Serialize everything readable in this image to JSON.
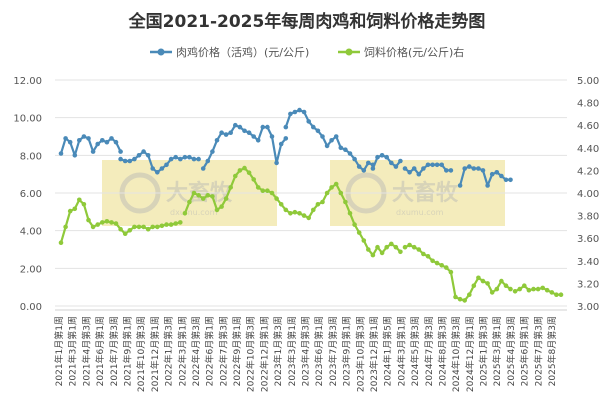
{
  "chart_data": {
    "type": "line",
    "title": "全国2021-2025年每周肉鸡和饲料价格走势图",
    "legend_position": "top",
    "grid": true,
    "watermark": "大畜牧 dxumu.com",
    "y_left": {
      "ticks": [
        "0.00",
        "2.00",
        "4.00",
        "6.00",
        "8.00",
        "10.00",
        "12.00"
      ],
      "range": [
        0,
        12
      ]
    },
    "y_right": {
      "ticks": [
        "3.00",
        "3.20",
        "3.40",
        "3.60",
        "3.80",
        "4.00",
        "4.20",
        "4.40",
        "4.60",
        "4.80",
        "5.00"
      ],
      "range": [
        3.0,
        5.0
      ]
    },
    "x_tick_labels": [
      "2021年1月第1周",
      "2021年3月第1周",
      "2021年4月第3周",
      "2021年6月第1周",
      "2021年7月第3周",
      "2021年9月第1周",
      "2021年10月第3周",
      "2021年12月第1周",
      "2022年1月第3周",
      "2022年3月第1周",
      "2022年4月第3周",
      "2022年6月第1周",
      "2022年7月第3周",
      "2022年9月第1周",
      "2022年10月第3周",
      "2022年12月第1周",
      "2023年1月第3周",
      "2023年3月第1周",
      "2023年4月第3周",
      "2023年6月第1周",
      "2023年7月第3周",
      "2023年9月第1周",
      "2023年10月第3周",
      "2023年12月第1周",
      "2024年1月第5周",
      "2024年3月第1周",
      "2024年5月第3周",
      "2024年7月第3周",
      "2024年8月第3周",
      "2024年10月第3周",
      "2024年12月第1周",
      "2025年1月第3周",
      "2025年3月第1周",
      "2025年4月第3周",
      "2025年6月第1周",
      "2025年7月第3周",
      "2025年8月第3周"
    ],
    "series": [
      {
        "name": "肉鸡价格（活鸡）(元/公斤)",
        "axis": "left",
        "color": "#4a8ab8",
        "marker": "circle",
        "segments": [
          [
            [
              0,
              8.1
            ],
            [
              1,
              8.9
            ],
            [
              2,
              8.7
            ],
            [
              3,
              8.0
            ],
            [
              4,
              8.8
            ],
            [
              5,
              9.0
            ],
            [
              6,
              8.9
            ],
            [
              7,
              8.2
            ],
            [
              8,
              8.6
            ],
            [
              9,
              8.8
            ],
            [
              10,
              8.7
            ],
            [
              11,
              8.9
            ],
            [
              12,
              8.7
            ],
            [
              13,
              8.2
            ]
          ],
          [
            [
              13,
              7.8
            ],
            [
              14,
              7.7
            ],
            [
              15,
              7.7
            ],
            [
              16,
              7.8
            ],
            [
              17,
              8.0
            ],
            [
              18,
              8.2
            ],
            [
              19,
              8.0
            ],
            [
              20,
              7.3
            ],
            [
              21,
              7.1
            ],
            [
              22,
              7.3
            ],
            [
              23,
              7.5
            ],
            [
              24,
              7.8
            ],
            [
              25,
              7.9
            ],
            [
              26,
              7.8
            ],
            [
              27,
              7.9
            ],
            [
              28,
              7.9
            ],
            [
              29,
              7.8
            ],
            [
              30,
              7.8
            ]
          ],
          [
            [
              31,
              7.3
            ],
            [
              32,
              7.7
            ],
            [
              33,
              8.2
            ],
            [
              34,
              8.8
            ],
            [
              35,
              9.2
            ],
            [
              36,
              9.1
            ],
            [
              37,
              9.2
            ],
            [
              38,
              9.6
            ],
            [
              39,
              9.5
            ],
            [
              40,
              9.3
            ],
            [
              41,
              9.2
            ],
            [
              42,
              9.0
            ],
            [
              43,
              8.8
            ],
            [
              44,
              9.5
            ],
            [
              45,
              9.5
            ],
            [
              46,
              9.0
            ],
            [
              47,
              7.6
            ],
            [
              48,
              8.6
            ],
            [
              49,
              8.9
            ]
          ],
          [
            [
              49,
              9.5
            ],
            [
              50,
              10.2
            ],
            [
              51,
              10.3
            ],
            [
              52,
              10.4
            ],
            [
              53,
              10.3
            ],
            [
              54,
              9.8
            ],
            [
              55,
              9.5
            ],
            [
              56,
              9.3
            ],
            [
              57,
              9.0
            ],
            [
              58,
              8.5
            ],
            [
              59,
              8.8
            ],
            [
              60,
              9.0
            ],
            [
              61,
              8.4
            ],
            [
              62,
              8.3
            ],
            [
              63,
              8.1
            ],
            [
              64,
              7.8
            ],
            [
              65,
              7.4
            ],
            [
              66,
              7.2
            ],
            [
              67,
              7.6
            ],
            [
              68,
              7.5
            ]
          ],
          [
            [
              68,
              7.3
            ],
            [
              69,
              7.9
            ],
            [
              70,
              8.0
            ],
            [
              71,
              7.9
            ],
            [
              72,
              7.6
            ],
            [
              73,
              7.4
            ],
            [
              74,
              7.7
            ]
          ],
          [
            [
              75,
              7.3
            ],
            [
              76,
              7.1
            ],
            [
              77,
              7.3
            ],
            [
              78,
              7.0
            ],
            [
              79,
              7.3
            ],
            [
              80,
              7.5
            ],
            [
              81,
              7.5
            ],
            [
              82,
              7.5
            ],
            [
              83,
              7.5
            ],
            [
              84,
              7.2
            ],
            [
              85,
              7.2
            ]
          ],
          [
            [
              87,
              6.4
            ],
            [
              88,
              7.3
            ],
            [
              89,
              7.4
            ],
            [
              90,
              7.3
            ],
            [
              91,
              7.3
            ],
            [
              92,
              7.2
            ],
            [
              93,
              6.4
            ],
            [
              94,
              7.0
            ],
            [
              95,
              7.1
            ],
            [
              96,
              6.9
            ],
            [
              97,
              6.7
            ],
            [
              98,
              6.7
            ]
          ]
        ]
      },
      {
        "name": "饲料价格(元/公斤)右",
        "axis": "right",
        "color": "#8fc93a",
        "marker": "circle",
        "segments": [
          [
            [
              0,
              3.56
            ],
            [
              1,
              3.7
            ],
            [
              2,
              3.84
            ],
            [
              3,
              3.86
            ],
            [
              4,
              3.94
            ],
            [
              5,
              3.9
            ],
            [
              6,
              3.76
            ],
            [
              7,
              3.7
            ],
            [
              8,
              3.72
            ],
            [
              9,
              3.74
            ],
            [
              10,
              3.75
            ],
            [
              11,
              3.74
            ],
            [
              12,
              3.73
            ],
            [
              13,
              3.68
            ],
            [
              14,
              3.64
            ],
            [
              15,
              3.67
            ],
            [
              16,
              3.7
            ],
            [
              17,
              3.7
            ],
            [
              18,
              3.7
            ],
            [
              19,
              3.68
            ],
            [
              20,
              3.7
            ],
            [
              21,
              3.7
            ],
            [
              22,
              3.71
            ],
            [
              23,
              3.72
            ],
            [
              24,
              3.72
            ],
            [
              25,
              3.73
            ],
            [
              26,
              3.74
            ]
          ],
          [
            [
              27,
              3.82
            ],
            [
              28,
              3.92
            ],
            [
              29,
              4.0
            ],
            [
              30,
              3.98
            ],
            [
              31,
              3.95
            ],
            [
              32,
              3.98
            ],
            [
              33,
              3.97
            ],
            [
              34,
              3.85
            ],
            [
              35,
              3.88
            ],
            [
              36,
              3.95
            ],
            [
              37,
              4.05
            ],
            [
              38,
              4.15
            ],
            [
              39,
              4.2
            ],
            [
              40,
              4.22
            ],
            [
              41,
              4.18
            ],
            [
              42,
              4.12
            ],
            [
              43,
              4.05
            ],
            [
              44,
              4.02
            ],
            [
              45,
              4.02
            ],
            [
              46,
              4.0
            ],
            [
              47,
              3.95
            ],
            [
              48,
              3.9
            ],
            [
              49,
              3.85
            ],
            [
              50,
              3.82
            ],
            [
              51,
              3.83
            ],
            [
              52,
              3.82
            ],
            [
              53,
              3.8
            ],
            [
              54,
              3.78
            ],
            [
              55,
              3.85
            ],
            [
              56,
              3.9
            ],
            [
              57,
              3.92
            ],
            [
              58,
              4.0
            ],
            [
              59,
              4.05
            ],
            [
              60,
              4.08
            ],
            [
              61,
              4.0
            ],
            [
              62,
              3.92
            ],
            [
              63,
              3.82
            ],
            [
              64,
              3.72
            ],
            [
              65,
              3.65
            ],
            [
              66,
              3.58
            ],
            [
              67,
              3.5
            ],
            [
              68,
              3.45
            ],
            [
              69,
              3.52
            ],
            [
              70,
              3.47
            ],
            [
              71,
              3.52
            ],
            [
              72,
              3.55
            ],
            [
              73,
              3.52
            ],
            [
              74,
              3.48
            ]
          ],
          [
            [
              75,
              3.52
            ],
            [
              76,
              3.54
            ],
            [
              77,
              3.52
            ],
            [
              78,
              3.5
            ],
            [
              79,
              3.46
            ],
            [
              80,
              3.44
            ],
            [
              81,
              3.4
            ],
            [
              82,
              3.38
            ],
            [
              83,
              3.36
            ],
            [
              84,
              3.34
            ],
            [
              85,
              3.3
            ],
            [
              86,
              3.08
            ],
            [
              87,
              3.06
            ],
            [
              88,
              3.05
            ],
            [
              89,
              3.1
            ],
            [
              90,
              3.18
            ],
            [
              91,
              3.25
            ],
            [
              92,
              3.22
            ],
            [
              93,
              3.2
            ],
            [
              94,
              3.12
            ],
            [
              95,
              3.15
            ],
            [
              96,
              3.22
            ],
            [
              97,
              3.18
            ],
            [
              98,
              3.15
            ]
          ],
          [
            [
              99,
              3.13
            ],
            [
              100,
              3.15
            ],
            [
              101,
              3.18
            ],
            [
              102,
              3.14
            ],
            [
              103,
              3.15
            ],
            [
              104,
              3.15
            ],
            [
              105,
              3.16
            ],
            [
              106,
              3.14
            ],
            [
              107,
              3.12
            ],
            [
              108,
              3.1
            ],
            [
              109,
              3.1
            ]
          ]
        ]
      }
    ]
  }
}
